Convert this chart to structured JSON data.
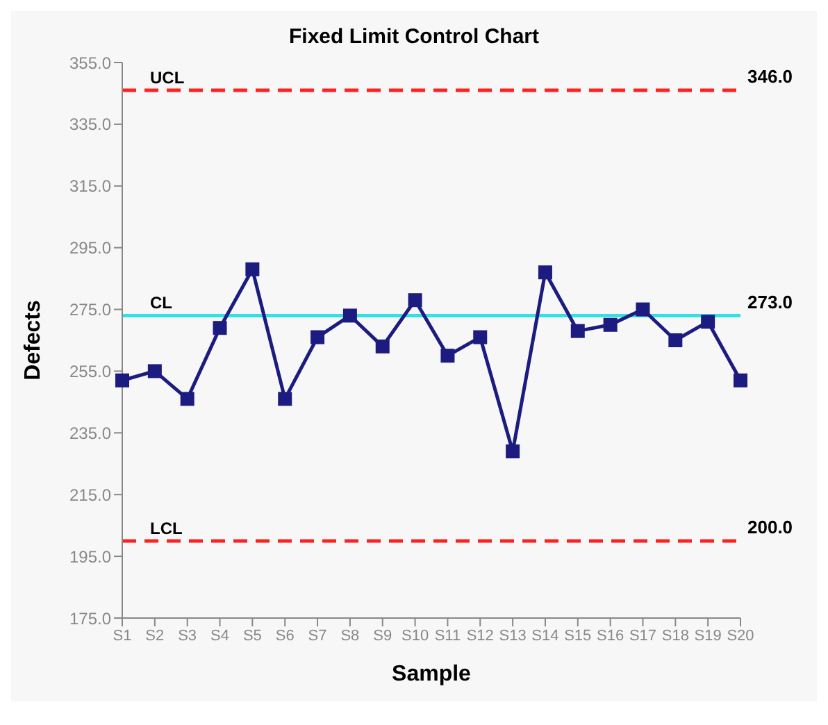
{
  "chart_data": {
    "type": "line",
    "title": "Fixed Limit Control Chart",
    "xlabel": "Sample",
    "ylabel": "Defects",
    "categories": [
      "S1",
      "S2",
      "S3",
      "S4",
      "S5",
      "S6",
      "S7",
      "S8",
      "S9",
      "S10",
      "S11",
      "S12",
      "S13",
      "S14",
      "S15",
      "S16",
      "S17",
      "S18",
      "S19",
      "S20"
    ],
    "series": [
      {
        "color": "#1c1c80",
        "values": [
          252,
          255,
          246,
          269,
          288,
          246,
          266,
          273,
          263,
          278,
          260,
          266,
          229,
          287,
          268,
          270,
          275,
          265,
          271,
          252
        ]
      }
    ],
    "ylim": [
      175,
      355
    ],
    "yticks": [
      {
        "value": 175,
        "label": "175.0"
      },
      {
        "value": 195,
        "label": "195.0"
      },
      {
        "value": 215,
        "label": "215.0"
      },
      {
        "value": 235,
        "label": "235.0"
      },
      {
        "value": 255,
        "label": "255.0"
      },
      {
        "value": 275,
        "label": "275.0"
      },
      {
        "value": 295,
        "label": "295.0"
      },
      {
        "value": 315,
        "label": "315.0"
      },
      {
        "value": 335,
        "label": "335.0"
      },
      {
        "value": 355,
        "label": "355.0"
      }
    ],
    "ref_lines": [
      {
        "axis": "y",
        "value": 346,
        "label": "UCL",
        "color": "#ff2020",
        "line_style": "dashed"
      },
      {
        "axis": "y",
        "value": 273,
        "label": "CL",
        "color": "#33e0e8",
        "line_style": "solid"
      },
      {
        "axis": "y",
        "value": 200,
        "label": "LCL",
        "color": "#ff2020",
        "line_style": "dashed"
      }
    ],
    "annotations": [
      {
        "text": "346.0",
        "x": "S20",
        "y": 346
      },
      {
        "text": "273.0",
        "x": "S20",
        "y": 273
      },
      {
        "text": "200.0",
        "x": "S20",
        "y": 200
      }
    ],
    "marker": "square"
  }
}
